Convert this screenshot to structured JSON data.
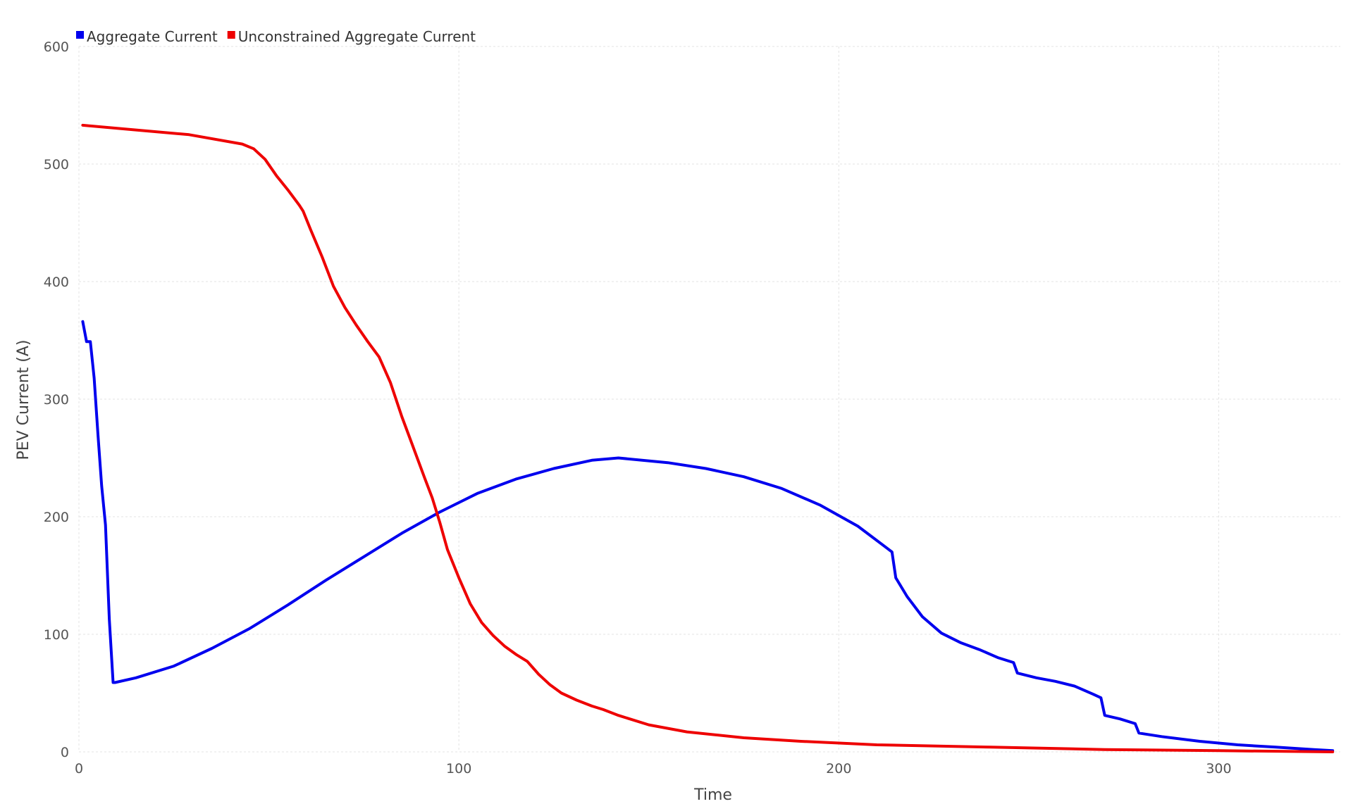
{
  "chart_data": {
    "type": "line",
    "title": "",
    "xlabel": "Time",
    "ylabel": "PEV Current (A)",
    "xlim": [
      0,
      332
    ],
    "ylim": [
      0,
      600
    ],
    "xticks": [
      0,
      100,
      200,
      300
    ],
    "yticks": [
      0,
      100,
      200,
      300,
      400,
      500,
      600
    ],
    "grid": true,
    "legend_position": "top-left",
    "series": [
      {
        "name": "Aggregate Current",
        "color": "#0000ee",
        "points": [
          [
            1,
            366
          ],
          [
            2,
            349
          ],
          [
            3,
            349
          ],
          [
            4,
            318
          ],
          [
            5,
            270
          ],
          [
            6,
            226
          ],
          [
            7,
            193
          ],
          [
            8,
            113
          ],
          [
            9,
            59
          ],
          [
            9.5,
            59
          ],
          [
            15,
            63
          ],
          [
            25,
            73
          ],
          [
            35,
            88
          ],
          [
            45,
            105
          ],
          [
            55,
            125
          ],
          [
            65,
            146
          ],
          [
            75,
            166
          ],
          [
            85,
            186
          ],
          [
            95,
            204
          ],
          [
            105,
            220
          ],
          [
            115,
            232
          ],
          [
            125,
            241
          ],
          [
            135,
            248
          ],
          [
            142,
            250
          ],
          [
            155,
            246
          ],
          [
            165,
            241
          ],
          [
            175,
            234
          ],
          [
            185,
            224
          ],
          [
            195,
            210
          ],
          [
            205,
            192
          ],
          [
            212,
            175
          ],
          [
            214,
            170
          ],
          [
            215,
            148
          ],
          [
            218,
            132
          ],
          [
            222,
            115
          ],
          [
            227,
            101
          ],
          [
            232,
            93
          ],
          [
            237,
            87
          ],
          [
            242,
            80
          ],
          [
            246,
            76
          ],
          [
            247,
            67
          ],
          [
            252,
            63
          ],
          [
            257,
            60
          ],
          [
            262,
            56
          ],
          [
            267,
            49
          ],
          [
            269,
            46
          ],
          [
            270,
            31
          ],
          [
            274,
            28
          ],
          [
            278,
            24
          ],
          [
            279,
            16
          ],
          [
            285,
            13
          ],
          [
            295,
            9
          ],
          [
            305,
            6
          ],
          [
            315,
            4
          ],
          [
            325,
            2
          ],
          [
            330,
            1
          ]
        ]
      },
      {
        "name": "Unconstrained Aggregate Current",
        "color": "#ee0000",
        "points": [
          [
            1,
            533
          ],
          [
            15,
            529
          ],
          [
            29,
            525
          ],
          [
            43,
            517
          ],
          [
            46,
            513
          ],
          [
            49,
            504
          ],
          [
            52,
            490
          ],
          [
            55,
            478
          ],
          [
            58,
            465
          ],
          [
            59,
            460
          ],
          [
            61,
            444
          ],
          [
            64,
            421
          ],
          [
            67,
            396
          ],
          [
            70,
            378
          ],
          [
            73,
            363
          ],
          [
            76,
            349
          ],
          [
            79,
            336
          ],
          [
            82,
            314
          ],
          [
            85,
            285
          ],
          [
            88,
            259
          ],
          [
            91,
            233
          ],
          [
            93,
            216
          ],
          [
            95,
            195
          ],
          [
            97,
            172
          ],
          [
            100,
            148
          ],
          [
            103,
            126
          ],
          [
            106,
            110
          ],
          [
            109,
            99
          ],
          [
            112,
            90
          ],
          [
            115,
            83
          ],
          [
            118,
            77
          ],
          [
            121,
            66
          ],
          [
            124,
            57
          ],
          [
            127,
            50
          ],
          [
            131,
            44
          ],
          [
            135,
            39
          ],
          [
            138,
            36
          ],
          [
            142,
            31
          ],
          [
            150,
            23
          ],
          [
            160,
            17
          ],
          [
            175,
            12
          ],
          [
            190,
            9
          ],
          [
            210,
            6
          ],
          [
            240,
            4
          ],
          [
            270,
            2
          ],
          [
            300,
            1
          ],
          [
            330,
            0
          ]
        ]
      }
    ]
  }
}
